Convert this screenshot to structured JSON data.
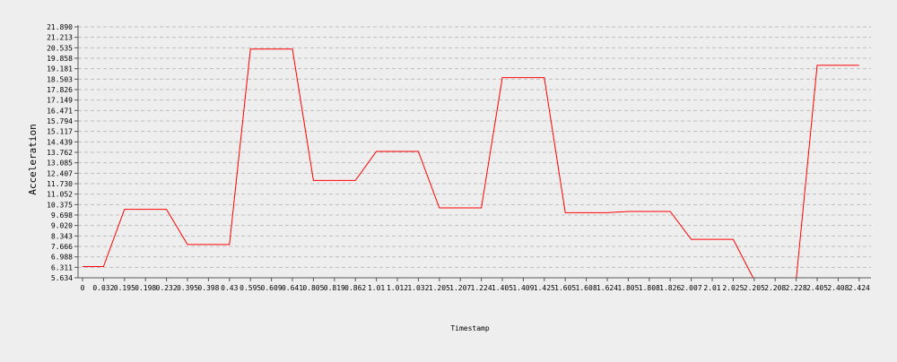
{
  "chart_data": {
    "type": "line",
    "title": "",
    "xlabel": "Timestamp",
    "ylabel": "Acceleration",
    "x_tick_labels": [
      "0",
      "0.032",
      "0.195",
      "0.198",
      "0.232",
      "0.395",
      "0.398",
      "0.43",
      "0.595",
      "0.609",
      "0.641",
      "0.805",
      "0.819",
      "0.862",
      "1.01",
      "1.012",
      "1.032",
      "1.205",
      "1.207",
      "1.224",
      "1.405",
      "1.409",
      "1.425",
      "1.605",
      "1.608",
      "1.624",
      "1.805",
      "1.808",
      "1.826",
      "2.007",
      "2.01",
      "2.025",
      "2.205",
      "2.208",
      "2.228",
      "2.405",
      "2.408",
      "2.424"
    ],
    "y_ticks": [
      "5.634",
      "6.311",
      "6.988",
      "7.666",
      "8.343",
      "9.020",
      "9.698",
      "10.375",
      "11.052",
      "11.730",
      "12.407",
      "13.085",
      "13.762",
      "14.439",
      "15.117",
      "15.794",
      "16.471",
      "17.149",
      "17.826",
      "18.503",
      "19.181",
      "19.858",
      "20.535",
      "21.213",
      "21.890"
    ],
    "ylim": [
      5.634,
      21.89
    ],
    "grid": true,
    "series": [
      {
        "color": "#ff0000",
        "values": [
          6.36,
          6.36,
          10.07,
          10.07,
          10.07,
          7.79,
          7.79,
          7.79,
          20.45,
          20.45,
          20.45,
          11.94,
          11.94,
          11.94,
          13.82,
          13.82,
          13.82,
          10.16,
          10.16,
          10.16,
          18.6,
          18.6,
          18.6,
          9.85,
          9.85,
          9.85,
          9.93,
          9.93,
          9.93,
          8.12,
          8.12,
          8.12,
          5.5,
          5.5,
          5.5,
          19.4,
          19.4,
          19.4
        ]
      }
    ]
  }
}
